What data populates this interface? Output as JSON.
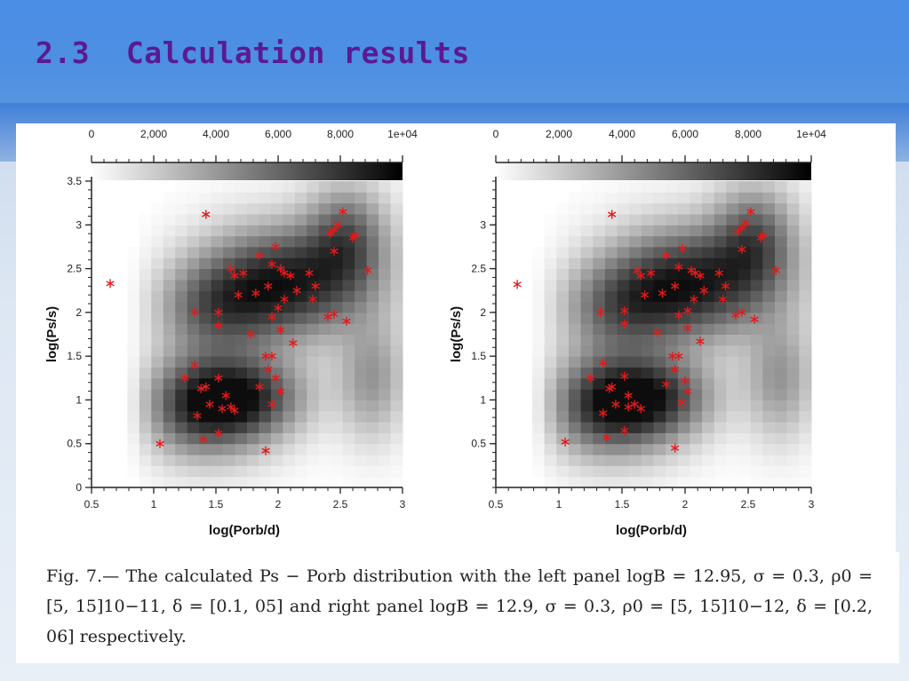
{
  "slide": {
    "title": "2.3  Calculation results"
  },
  "caption": {
    "text": "Fig. 7.— The calculated Ps − Porb distribution with the left panel logB = 12.95, σ = 0.3, ρ0 = [5, 15]10−11, δ = [0.1, 05] and right panel logB = 12.9, σ = 0.3, ρ0 = [5, 15]10−12, δ = [0.2, 06] respectively."
  },
  "chart_data": [
    {
      "type": "heatmap",
      "panel": "left",
      "xlabel": "log(Porb/d)",
      "ylabel": "log(Ps/s)",
      "xlim": [
        0.5,
        3
      ],
      "ylim": [
        0,
        3.5
      ],
      "xticks": [
        "0.5",
        "1",
        "1.5",
        "2",
        "2.5",
        "3"
      ],
      "yticks": [
        "0",
        "0.5",
        "1",
        "1.5",
        "2",
        "2.5",
        "3",
        "3.5"
      ],
      "colorbar": {
        "range": [
          0,
          10000
        ],
        "ticks": [
          "0",
          "2,000",
          "4,000",
          "6,000",
          "8,000",
          "1e+04"
        ],
        "colors": [
          "#ffffff",
          "#000000"
        ]
      },
      "marker_color": "#e41a1c",
      "points": [
        [
          0.65,
          2.33
        ],
        [
          1.05,
          0.5
        ],
        [
          1.42,
          3.12
        ],
        [
          1.9,
          0.42
        ],
        [
          1.35,
          0.82
        ],
        [
          1.4,
          0.55
        ],
        [
          1.45,
          0.95
        ],
        [
          1.38,
          1.13
        ],
        [
          1.25,
          1.25
        ],
        [
          1.33,
          1.4
        ],
        [
          1.42,
          1.15
        ],
        [
          1.52,
          1.25
        ],
        [
          1.55,
          0.9
        ],
        [
          1.58,
          1.05
        ],
        [
          1.62,
          0.92
        ],
        [
          1.65,
          0.88
        ],
        [
          1.52,
          0.62
        ],
        [
          1.33,
          2.0
        ],
        [
          1.52,
          2.0
        ],
        [
          1.52,
          1.85
        ],
        [
          1.62,
          2.5
        ],
        [
          1.65,
          2.42
        ],
        [
          1.72,
          2.45
        ],
        [
          1.68,
          2.2
        ],
        [
          1.82,
          2.22
        ],
        [
          1.78,
          1.75
        ],
        [
          1.85,
          2.65
        ],
        [
          1.92,
          2.3
        ],
        [
          1.95,
          2.55
        ],
        [
          1.98,
          2.75
        ],
        [
          2.02,
          2.5
        ],
        [
          2.05,
          2.45
        ],
        [
          2.1,
          2.42
        ],
        [
          2.0,
          2.05
        ],
        [
          2.05,
          2.15
        ],
        [
          1.95,
          1.95
        ],
        [
          2.02,
          1.8
        ],
        [
          2.15,
          2.25
        ],
        [
          2.12,
          1.65
        ],
        [
          2.25,
          2.45
        ],
        [
          2.3,
          2.3
        ],
        [
          2.28,
          2.15
        ],
        [
          2.4,
          1.95
        ],
        [
          2.45,
          1.98
        ],
        [
          2.55,
          1.9
        ],
        [
          2.42,
          2.9
        ],
        [
          2.45,
          2.95
        ],
        [
          2.48,
          3.0
        ],
        [
          2.52,
          3.15
        ],
        [
          2.45,
          2.7
        ],
        [
          2.6,
          2.85
        ],
        [
          2.62,
          2.88
        ],
        [
          2.72,
          2.48
        ],
        [
          1.85,
          1.15
        ],
        [
          1.9,
          1.5
        ],
        [
          1.95,
          1.5
        ],
        [
          1.92,
          1.35
        ],
        [
          1.98,
          1.25
        ],
        [
          2.02,
          1.1
        ],
        [
          1.95,
          0.95
        ]
      ]
    },
    {
      "type": "heatmap",
      "panel": "right",
      "xlabel": "log(Porb/d)",
      "ylabel": "log(Ps/s)",
      "xlim": [
        0.5,
        3
      ],
      "ylim": [
        0,
        3.5
      ],
      "xticks": [
        "0.5",
        "1",
        "1.5",
        "2",
        "2.5",
        "3"
      ],
      "yticks": [
        "0.5",
        "1",
        "1.5",
        "2",
        "2.5",
        "3"
      ],
      "colorbar": {
        "range": [
          0,
          10000
        ],
        "ticks": [
          "0",
          "2,000",
          "4,000",
          "6,000",
          "8,000",
          "1e+04"
        ],
        "colors": [
          "#ffffff",
          "#000000"
        ]
      },
      "marker_color": "#e41a1c",
      "points": [
        [
          0.67,
          2.32
        ],
        [
          1.05,
          0.52
        ],
        [
          1.42,
          3.12
        ],
        [
          1.92,
          0.45
        ],
        [
          1.35,
          0.85
        ],
        [
          1.38,
          0.57
        ],
        [
          1.45,
          0.95
        ],
        [
          1.4,
          1.13
        ],
        [
          1.25,
          1.25
        ],
        [
          1.35,
          1.42
        ],
        [
          1.42,
          1.15
        ],
        [
          1.52,
          1.27
        ],
        [
          1.55,
          0.92
        ],
        [
          1.55,
          1.05
        ],
        [
          1.6,
          0.95
        ],
        [
          1.65,
          0.9
        ],
        [
          1.52,
          0.65
        ],
        [
          1.33,
          2.0
        ],
        [
          1.52,
          2.02
        ],
        [
          1.52,
          1.87
        ],
        [
          1.62,
          2.48
        ],
        [
          1.65,
          2.42
        ],
        [
          1.73,
          2.45
        ],
        [
          1.68,
          2.2
        ],
        [
          1.82,
          2.22
        ],
        [
          1.78,
          1.77
        ],
        [
          1.85,
          2.65
        ],
        [
          1.92,
          2.3
        ],
        [
          1.95,
          2.52
        ],
        [
          1.98,
          2.73
        ],
        [
          2.05,
          2.48
        ],
        [
          2.08,
          2.45
        ],
        [
          2.12,
          2.42
        ],
        [
          2.02,
          2.02
        ],
        [
          2.07,
          2.15
        ],
        [
          1.95,
          1.97
        ],
        [
          2.02,
          1.82
        ],
        [
          2.15,
          2.25
        ],
        [
          2.12,
          1.67
        ],
        [
          2.27,
          2.45
        ],
        [
          2.32,
          2.3
        ],
        [
          2.3,
          2.15
        ],
        [
          2.4,
          1.97
        ],
        [
          2.45,
          2.0
        ],
        [
          2.55,
          1.92
        ],
        [
          2.42,
          2.92
        ],
        [
          2.45,
          2.97
        ],
        [
          2.48,
          3.02
        ],
        [
          2.52,
          3.15
        ],
        [
          2.45,
          2.72
        ],
        [
          2.6,
          2.85
        ],
        [
          2.62,
          2.88
        ],
        [
          2.72,
          2.48
        ],
        [
          1.85,
          1.18
        ],
        [
          1.9,
          1.5
        ],
        [
          1.95,
          1.5
        ],
        [
          1.92,
          1.35
        ],
        [
          2.0,
          1.22
        ],
        [
          2.02,
          1.1
        ],
        [
          1.97,
          0.97
        ]
      ]
    }
  ]
}
